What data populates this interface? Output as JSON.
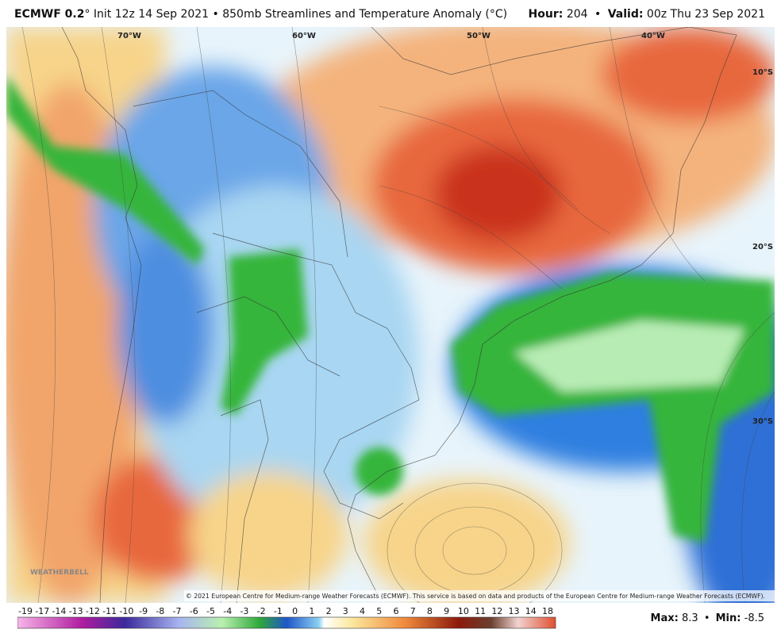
{
  "header": {
    "model": "ECMWF 0.2",
    "left": "° Init 12z 14 Sep 2021 • 850mb Streamlines and Temperature Anomaly (°C)",
    "right": [
      "Hour:",
      "204",
      "•",
      "Valid:",
      "00z Thu 23 Sep 2021"
    ]
  },
  "map": {
    "lon_labels": [
      "70°W",
      "60°W",
      "50°W",
      "40°W"
    ],
    "lat_labels": [
      "10°S",
      "20°S",
      "30°S"
    ],
    "copyright": "© 2021 European Centre for Medium-range Weather Forecasts (ECMWF). This service is based on data and products of the European Centre for Medium-range Weather Forecasts (ECMWF).",
    "logo": "WEATHERBELL"
  },
  "colorbar": {
    "labels": [
      "-19",
      "-17",
      "-14",
      "-13",
      "-12",
      "-11",
      "-10",
      "-9",
      "-8",
      "-7",
      "-6",
      "-5",
      "-4",
      "-3",
      "-2",
      "-1",
      "0",
      "1",
      "2",
      "3",
      "4",
      "5",
      "6",
      "7",
      "8",
      "9",
      "10",
      "11",
      "12",
      "13",
      "14",
      "18"
    ]
  },
  "stats": {
    "max_label": "Max:",
    "max": 8.3,
    "sep": "•",
    "min_label": "Min:",
    "min": -8.5
  }
}
